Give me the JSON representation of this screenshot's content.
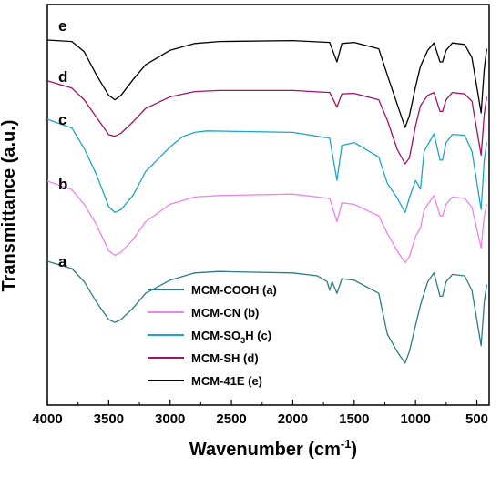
{
  "chart_data": {
    "type": "line",
    "title": "",
    "xlabel": "Wavenumber (cm",
    "xlabel_sup": "-1",
    "xlabel_suffix": ")",
    "ylabel": "Transmittance (a.u.)",
    "xlim": [
      4000,
      400
    ],
    "x_reversed": true,
    "y_ticks_shown": false,
    "grid": false,
    "legend_position": "bottom-center",
    "x_ticks": [
      4000,
      3500,
      3000,
      2500,
      2000,
      1500,
      1000,
      500
    ],
    "series": [
      {
        "key": "e",
        "name_main": "MCM-41E",
        "name_sub": "",
        "name_suffix": " (e)",
        "color": "#000000",
        "offset": 4,
        "points": [
          [
            4000,
            0
          ],
          [
            3800,
            -0.05
          ],
          [
            3700,
            -0.4
          ],
          [
            3600,
            -1.2
          ],
          [
            3500,
            -1.9
          ],
          [
            3450,
            -2.05
          ],
          [
            3400,
            -1.9
          ],
          [
            3300,
            -1.35
          ],
          [
            3200,
            -0.85
          ],
          [
            3000,
            -0.35
          ],
          [
            2800,
            -0.12
          ],
          [
            2600,
            -0.05
          ],
          [
            2000,
            -0.02
          ],
          [
            1700,
            -0.08
          ],
          [
            1640,
            -0.75
          ],
          [
            1600,
            -0.12
          ],
          [
            1500,
            -0.08
          ],
          [
            1300,
            -0.3
          ],
          [
            1230,
            -1.2
          ],
          [
            1150,
            -2.2
          ],
          [
            1085,
            -3.0
          ],
          [
            1050,
            -2.6
          ],
          [
            1000,
            -1.6
          ],
          [
            960,
            -0.9
          ],
          [
            900,
            -0.35
          ],
          [
            850,
            -0.1
          ],
          [
            800,
            -0.75
          ],
          [
            780,
            -0.75
          ],
          [
            750,
            -0.35
          ],
          [
            700,
            -0.1
          ],
          [
            600,
            -0.15
          ],
          [
            540,
            -0.6
          ],
          [
            465,
            -2.5
          ],
          [
            440,
            -1.0
          ],
          [
            420,
            -0.3
          ]
        ]
      },
      {
        "key": "d",
        "name_main": "MCM-SH",
        "name_sub": "",
        "name_suffix": " (d)",
        "color": "#a0116a",
        "offset": 3,
        "points": [
          [
            4000,
            0.35
          ],
          [
            3800,
            0.1
          ],
          [
            3700,
            -0.3
          ],
          [
            3600,
            -0.9
          ],
          [
            3500,
            -1.5
          ],
          [
            3450,
            -1.55
          ],
          [
            3400,
            -1.45
          ],
          [
            3300,
            -1.05
          ],
          [
            3200,
            -0.6
          ],
          [
            3000,
            -0.2
          ],
          [
            2800,
            -0.02
          ],
          [
            2600,
            0.02
          ],
          [
            2000,
            0.02
          ],
          [
            1700,
            -0.05
          ],
          [
            1640,
            -0.55
          ],
          [
            1600,
            -0.1
          ],
          [
            1500,
            -0.08
          ],
          [
            1300,
            -0.3
          ],
          [
            1230,
            -1.0
          ],
          [
            1150,
            -2.0
          ],
          [
            1085,
            -2.5
          ],
          [
            1050,
            -2.3
          ],
          [
            1000,
            -1.2
          ],
          [
            960,
            -0.5
          ],
          [
            900,
            -0.15
          ],
          [
            850,
            -0.05
          ],
          [
            800,
            -0.7
          ],
          [
            780,
            -0.7
          ],
          [
            750,
            -0.3
          ],
          [
            700,
            -0.05
          ],
          [
            600,
            -0.1
          ],
          [
            540,
            -0.35
          ],
          [
            465,
            -2.2
          ],
          [
            440,
            -0.8
          ],
          [
            420,
            -0.2
          ]
        ]
      },
      {
        "key": "c",
        "name_main": "MCM-SO",
        "name_sub": "3",
        "name_suffix": "H (c)",
        "color": "#1ba6c4",
        "offset": 2,
        "points": [
          [
            4000,
            0.5
          ],
          [
            3800,
            0.2
          ],
          [
            3700,
            -0.5
          ],
          [
            3600,
            -1.4
          ],
          [
            3500,
            -2.5
          ],
          [
            3450,
            -2.7
          ],
          [
            3400,
            -2.6
          ],
          [
            3300,
            -2.1
          ],
          [
            3200,
            -1.3
          ],
          [
            3000,
            -0.45
          ],
          [
            2900,
            -0.1
          ],
          [
            2800,
            0.05
          ],
          [
            2700,
            0.1
          ],
          [
            2000,
            0.05
          ],
          [
            1700,
            -0.15
          ],
          [
            1640,
            -1.6
          ],
          [
            1600,
            -0.4
          ],
          [
            1500,
            -0.3
          ],
          [
            1300,
            -0.8
          ],
          [
            1230,
            -1.7
          ],
          [
            1150,
            -2.2
          ],
          [
            1085,
            -2.7
          ],
          [
            1050,
            -2.2
          ],
          [
            1000,
            -1.6
          ],
          [
            960,
            -1.9
          ],
          [
            930,
            -0.6
          ],
          [
            850,
            0.0
          ],
          [
            800,
            -0.9
          ],
          [
            780,
            -0.9
          ],
          [
            750,
            -0.3
          ],
          [
            700,
            -0.02
          ],
          [
            600,
            -0.05
          ],
          [
            540,
            -0.6
          ],
          [
            465,
            -2.6
          ],
          [
            440,
            -0.9
          ],
          [
            420,
            -0.3
          ]
        ]
      },
      {
        "key": "b",
        "name_main": "MCM-CN",
        "name_sub": "",
        "name_suffix": " (b)",
        "color": "#ee82ee",
        "offset": 1,
        "points": [
          [
            4000,
            0.6
          ],
          [
            3800,
            0.3
          ],
          [
            3700,
            -0.2
          ],
          [
            3600,
            -0.9
          ],
          [
            3500,
            -1.8
          ],
          [
            3450,
            -1.95
          ],
          [
            3400,
            -1.85
          ],
          [
            3300,
            -1.4
          ],
          [
            3200,
            -0.8
          ],
          [
            3000,
            -0.2
          ],
          [
            2800,
            0.05
          ],
          [
            2600,
            0.1
          ],
          [
            2000,
            0.15
          ],
          [
            1700,
            0.0
          ],
          [
            1640,
            -0.8
          ],
          [
            1600,
            -0.15
          ],
          [
            1500,
            -0.2
          ],
          [
            1300,
            -0.6
          ],
          [
            1230,
            -1.2
          ],
          [
            1150,
            -1.8
          ],
          [
            1085,
            -2.2
          ],
          [
            1050,
            -2.0
          ],
          [
            1000,
            -1.3
          ],
          [
            960,
            -1.0
          ],
          [
            930,
            -0.4
          ],
          [
            850,
            0.1
          ],
          [
            800,
            -0.6
          ],
          [
            780,
            -0.6
          ],
          [
            750,
            -0.2
          ],
          [
            700,
            0.05
          ],
          [
            600,
            0.0
          ],
          [
            540,
            -0.3
          ],
          [
            465,
            -1.7
          ],
          [
            440,
            -0.6
          ],
          [
            420,
            -0.2
          ]
        ]
      },
      {
        "key": "a",
        "name_main": "MCM-COOH",
        "name_sub": "",
        "name_suffix": " (a)",
        "color": "#2c7b86",
        "offset": 0,
        "points": [
          [
            4000,
            0.5
          ],
          [
            3800,
            0.25
          ],
          [
            3700,
            -0.2
          ],
          [
            3600,
            -0.9
          ],
          [
            3500,
            -1.5
          ],
          [
            3450,
            -1.6
          ],
          [
            3400,
            -1.5
          ],
          [
            3300,
            -1.1
          ],
          [
            3200,
            -0.6
          ],
          [
            3000,
            -0.15
          ],
          [
            2800,
            0.1
          ],
          [
            2600,
            0.15
          ],
          [
            2000,
            0.1
          ],
          [
            1800,
            0.0
          ],
          [
            1720,
            -0.2
          ],
          [
            1700,
            -0.5
          ],
          [
            1680,
            -0.2
          ],
          [
            1640,
            -0.6
          ],
          [
            1600,
            -0.1
          ],
          [
            1500,
            -0.15
          ],
          [
            1300,
            -0.6
          ],
          [
            1230,
            -2.0
          ],
          [
            1150,
            -2.6
          ],
          [
            1085,
            -3.0
          ],
          [
            1050,
            -2.6
          ],
          [
            1000,
            -1.7
          ],
          [
            960,
            -1.0
          ],
          [
            900,
            -0.2
          ],
          [
            850,
            0.1
          ],
          [
            800,
            -0.7
          ],
          [
            780,
            -0.7
          ],
          [
            750,
            -0.2
          ],
          [
            700,
            0.05
          ],
          [
            600,
            0.0
          ],
          [
            540,
            -0.5
          ],
          [
            465,
            -2.4
          ],
          [
            440,
            -0.9
          ],
          [
            420,
            -0.3
          ]
        ]
      }
    ]
  }
}
